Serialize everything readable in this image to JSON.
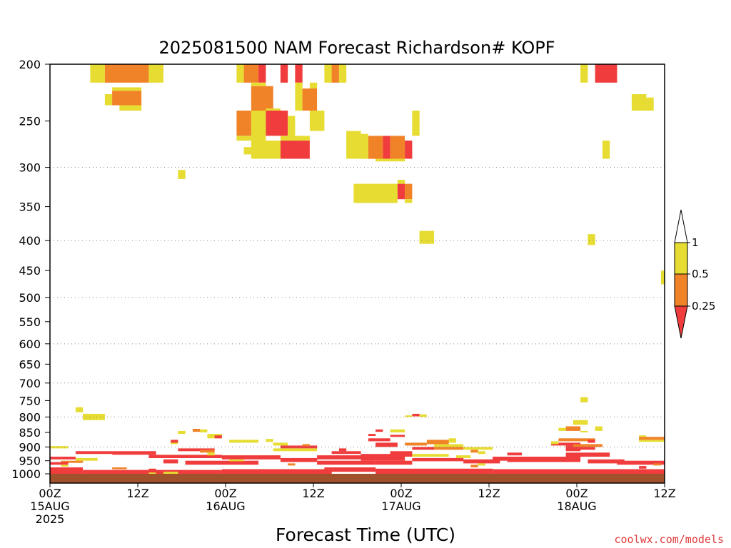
{
  "chart_data": {
    "type": "heatmap",
    "title": "2025081500 NAM Forecast Richardson# KOPF",
    "xlabel": "Forecast Time (UTC)",
    "credit": "coolwx.com/models",
    "y_axis": {
      "scale": "log-pressure",
      "range_hpa": [
        1000,
        200
      ],
      "ticks": [
        "200",
        "250",
        "300",
        "350",
        "400",
        "450",
        "500",
        "550",
        "600",
        "650",
        "700",
        "750",
        "800",
        "850",
        "900",
        "950",
        "1000"
      ],
      "dotted_gridlines_hpa": [
        300,
        400,
        500,
        600,
        700,
        800,
        900
      ]
    },
    "x_axis": {
      "range_hours": [
        0,
        84
      ],
      "ticks": [
        {
          "hour": 0,
          "line1": "00Z",
          "line2": "15AUG",
          "line3": "2025"
        },
        {
          "hour": 12,
          "line1": "12Z",
          "line2": "",
          "line3": ""
        },
        {
          "hour": 24,
          "line1": "00Z",
          "line2": "16AUG",
          "line3": ""
        },
        {
          "hour": 36,
          "line1": "12Z",
          "line2": "",
          "line3": ""
        },
        {
          "hour": 48,
          "line1": "00Z",
          "line2": "17AUG",
          "line3": ""
        },
        {
          "hour": 60,
          "line1": "12Z",
          "line2": "",
          "line3": ""
        },
        {
          "hour": 72,
          "line1": "00Z",
          "line2": "18AUG",
          "line3": ""
        },
        {
          "hour": 84,
          "line1": "12Z",
          "line2": "",
          "line3": ""
        }
      ]
    },
    "colorbar": {
      "levels": [
        "1",
        "0.5",
        "0.25"
      ],
      "bins": [
        {
          "range": "<0.25",
          "color": "#f03c3c"
        },
        {
          "range": "0.25-0.5",
          "color": "#f08228"
        },
        {
          "range": "0.5-1",
          "color": "#e6dc32"
        },
        {
          "range": ">1",
          "color": "#ffffff"
        }
      ]
    },
    "ground_color": "#a0522d",
    "cell_value_codes": {
      "Y": "0.5-1",
      "O": "0.25-0.5",
      "R": "<0.25"
    },
    "cells": [
      [
        "Y",
        5.5,
        7.5,
        200,
        215
      ],
      [
        "O",
        7.5,
        13.5,
        200,
        215
      ],
      [
        "Y",
        13.5,
        15.5,
        200,
        215
      ],
      [
        "Y",
        14.5,
        15.5,
        200,
        208
      ],
      [
        "Y",
        7.5,
        8.5,
        225,
        235
      ],
      [
        "O",
        8.5,
        12.5,
        222,
        235
      ],
      [
        "Y",
        8.5,
        12.5,
        219,
        222
      ],
      [
        "Y",
        9.5,
        12.5,
        235,
        240
      ],
      [
        "Y",
        17.5,
        18.5,
        303,
        314
      ],
      [
        "Y",
        25.5,
        26.5,
        200,
        215
      ],
      [
        "O",
        26.5,
        28.5,
        200,
        215
      ],
      [
        "R",
        28.5,
        29.5,
        200,
        215
      ],
      [
        "Y",
        27.5,
        29.5,
        215,
        218
      ],
      [
        "O",
        27.5,
        30.5,
        218,
        240
      ],
      [
        "Y",
        29.5,
        31.5,
        238,
        245
      ],
      [
        "R",
        31.5,
        32.5,
        200,
        215
      ],
      [
        "R",
        33.5,
        34.5,
        200,
        215
      ],
      [
        "Y",
        37.5,
        38.5,
        200,
        215
      ],
      [
        "O",
        38.5,
        39.5,
        200,
        215
      ],
      [
        "Y",
        39.5,
        40.5,
        200,
        215
      ],
      [
        "Y",
        33.5,
        34.5,
        215,
        240
      ],
      [
        "O",
        34.5,
        36.5,
        220,
        240
      ],
      [
        "Y",
        35.5,
        36.5,
        215,
        220
      ],
      [
        "O",
        25.5,
        27.5,
        240,
        265
      ],
      [
        "Y",
        25.5,
        27.5,
        265,
        270
      ],
      [
        "Y",
        27.5,
        29.5,
        240,
        280
      ],
      [
        "R",
        29.5,
        32.5,
        240,
        265
      ],
      [
        "Y",
        32.5,
        33.5,
        245,
        265
      ],
      [
        "Y",
        35.5,
        37.5,
        240,
        260
      ],
      [
        "Y",
        32.5,
        34.5,
        265,
        270
      ],
      [
        "Y",
        26.5,
        27.5,
        277,
        285
      ],
      [
        "Y",
        27.5,
        31.5,
        270,
        290
      ],
      [
        "R",
        31.5,
        35.5,
        270,
        290
      ],
      [
        "Y",
        31.5,
        35.5,
        265,
        270
      ],
      [
        "Y",
        40.5,
        42.5,
        260,
        290
      ],
      [
        "Y",
        42.5,
        43.5,
        263,
        290
      ],
      [
        "O",
        43.5,
        45.5,
        265,
        290
      ],
      [
        "R",
        45.5,
        46.5,
        265,
        290
      ],
      [
        "O",
        46.5,
        48.5,
        265,
        290
      ],
      [
        "R",
        48.5,
        49.5,
        270,
        290
      ],
      [
        "Y",
        44.5,
        48.5,
        290,
        293
      ],
      [
        "Y",
        49.5,
        50.5,
        240,
        265
      ],
      [
        "Y",
        41.5,
        47.5,
        320,
        345
      ],
      [
        "R",
        47.5,
        48.5,
        320,
        340
      ],
      [
        "O",
        48.5,
        49.5,
        320,
        340
      ],
      [
        "Y",
        47.5,
        48.5,
        315,
        320
      ],
      [
        "Y",
        48.5,
        49.5,
        340,
        345
      ],
      [
        "Y",
        50.5,
        52.5,
        385,
        405
      ],
      [
        "Y",
        72.5,
        73.5,
        200,
        215
      ],
      [
        "R",
        74.5,
        77.5,
        200,
        215
      ],
      [
        "Y",
        79.5,
        81.5,
        225,
        240
      ],
      [
        "Y",
        81.5,
        82.5,
        228,
        240
      ],
      [
        "Y",
        75.5,
        76.5,
        270,
        290
      ],
      [
        "Y",
        73.5,
        74.5,
        390,
        407
      ],
      [
        "Y",
        83.5,
        84.5,
        450,
        475
      ],
      [
        "Y",
        72.5,
        73.5,
        740,
        755
      ],
      [
        "Y",
        3.5,
        4.5,
        770,
        785
      ],
      [
        "Y",
        4.5,
        7.5,
        790,
        810
      ],
      [
        "R",
        49.5,
        50.5,
        790,
        798
      ],
      [
        "Y",
        50.5,
        51.5,
        792,
        800
      ],
      [
        "Y",
        48.5,
        49.5,
        795,
        800
      ],
      [
        "Y",
        71.5,
        73.5,
        810,
        825
      ],
      [
        "O",
        70.5,
        72.5,
        830,
        845
      ],
      [
        "Y",
        69.5,
        70.5,
        835,
        845
      ],
      [
        "Y",
        72.5,
        73.5,
        845,
        850
      ],
      [
        "Y",
        74.5,
        75.5,
        830,
        845
      ],
      [
        "Y",
        17.5,
        18.5,
        845,
        855
      ],
      [
        "O",
        19.5,
        20.5,
        838,
        848
      ],
      [
        "Y",
        20.5,
        21.5,
        840,
        850
      ],
      [
        "Y",
        21.5,
        23.5,
        855,
        870
      ],
      [
        "R",
        22.5,
        23.5,
        860,
        870
      ],
      [
        "R",
        44.5,
        45.5,
        840,
        848
      ],
      [
        "Y",
        46.5,
        48.5,
        840,
        850
      ],
      [
        "R",
        43.5,
        44.5,
        855,
        862
      ],
      [
        "R",
        46.5,
        48.5,
        858,
        865
      ],
      [
        "Y",
        80.5,
        81.5,
        860,
        865
      ],
      [
        "O",
        80.5,
        84.5,
        865,
        875
      ],
      [
        "Y",
        80.5,
        84.5,
        875,
        882
      ],
      [
        "Y",
        0,
        2.5,
        897,
        905
      ],
      [
        "R",
        16.5,
        17.5,
        875,
        885
      ],
      [
        "Y",
        16.5,
        17.5,
        885,
        890
      ],
      [
        "Y",
        24.5,
        28.5,
        875,
        885
      ],
      [
        "Y",
        29.5,
        30.5,
        872,
        882
      ],
      [
        "Y",
        30.5,
        32.5,
        885,
        895
      ],
      [
        "R",
        31.5,
        36.5,
        895,
        905
      ],
      [
        "O",
        34.5,
        35.5,
        890,
        897
      ],
      [
        "Y",
        30.5,
        36.5,
        905,
        915
      ],
      [
        "R",
        43.5,
        46.5,
        870,
        880
      ],
      [
        "R",
        44.5,
        47.5,
        885,
        900
      ],
      [
        "O",
        48.5,
        51.5,
        885,
        895
      ],
      [
        "O",
        51.5,
        54.5,
        875,
        890
      ],
      [
        "Y",
        54.5,
        55.5,
        870,
        885
      ],
      [
        "Y",
        52.5,
        56.5,
        890,
        900
      ],
      [
        "R",
        49.5,
        52.5,
        900,
        910
      ],
      [
        "O",
        52.5,
        56.5,
        900,
        910
      ],
      [
        "Y",
        56.5,
        60.5,
        900,
        910
      ],
      [
        "Y",
        49.5,
        54.5,
        925,
        935
      ],
      [
        "Y",
        55.5,
        57.5,
        930,
        940
      ],
      [
        "R",
        46.5,
        49.5,
        915,
        935
      ],
      [
        "Y",
        47.5,
        48.5,
        935,
        940
      ],
      [
        "R",
        68.5,
        72.5,
        885,
        895
      ],
      [
        "O",
        69.5,
        74.5,
        870,
        880
      ],
      [
        "R",
        70.5,
        72.5,
        895,
        915
      ],
      [
        "Y",
        68.5,
        69.5,
        880,
        890
      ],
      [
        "R",
        73.5,
        74.5,
        875,
        885
      ],
      [
        "O",
        71.5,
        75.5,
        890,
        900
      ],
      [
        "R",
        71.5,
        74.5,
        900,
        910
      ],
      [
        "Y",
        58.5,
        59.5,
        915,
        925
      ],
      [
        "O",
        57.5,
        58.5,
        910,
        920
      ],
      [
        "R",
        62.5,
        64.5,
        920,
        930
      ],
      [
        "R",
        63.5,
        65.5,
        935,
        945
      ],
      [
        "R",
        3.5,
        8.5,
        915,
        925
      ],
      [
        "R",
        0,
        3.5,
        935,
        945
      ],
      [
        "R",
        8.5,
        14.5,
        915,
        928
      ],
      [
        "Y",
        3.5,
        6.5,
        940,
        950
      ],
      [
        "O",
        1.5,
        4.5,
        950,
        958
      ],
      [
        "R",
        0,
        2.5,
        955,
        965
      ],
      [
        "R",
        13.5,
        23.5,
        928,
        940
      ],
      [
        "R",
        17.5,
        22.5,
        905,
        915
      ],
      [
        "O",
        20.5,
        22.5,
        910,
        920
      ],
      [
        "Y",
        21.5,
        22.5,
        920,
        930
      ],
      [
        "R",
        23.5,
        31.5,
        930,
        945
      ],
      [
        "R",
        15.5,
        17.5,
        945,
        960
      ],
      [
        "R",
        18.5,
        28.5,
        950,
        965
      ],
      [
        "Y",
        24.5,
        26.5,
        945,
        952
      ],
      [
        "R",
        31.5,
        36.5,
        940,
        955
      ],
      [
        "R",
        36.5,
        43.5,
        930,
        945
      ],
      [
        "R",
        38.5,
        42.5,
        915,
        925
      ],
      [
        "R",
        39.5,
        40.5,
        905,
        915
      ],
      [
        "R",
        36.5,
        44.5,
        950,
        965
      ],
      [
        "R",
        42.5,
        48.5,
        925,
        950
      ],
      [
        "R",
        44.5,
        49.5,
        950,
        965
      ],
      [
        "R",
        49.5,
        56.5,
        940,
        952
      ],
      [
        "R",
        56.5,
        61.5,
        945,
        960
      ],
      [
        "R",
        60.5,
        64.5,
        935,
        950
      ],
      [
        "R",
        62.5,
        72.5,
        935,
        955
      ],
      [
        "R",
        70.5,
        76.5,
        920,
        935
      ],
      [
        "R",
        73.5,
        78.5,
        945,
        960
      ],
      [
        "R",
        77.5,
        84.5,
        950,
        965
      ],
      [
        "R",
        4.5,
        23.5,
        985,
        1000
      ],
      [
        "R",
        23.5,
        38.5,
        982,
        1000
      ],
      [
        "R",
        37.5,
        44.5,
        975,
        992
      ],
      [
        "R",
        44.5,
        60.5,
        980,
        1000
      ],
      [
        "R",
        60.5,
        84.5,
        982,
        1000
      ],
      [
        "R",
        13.5,
        14.5,
        980,
        995
      ],
      [
        "R",
        0,
        4.5,
        975,
        1000
      ],
      [
        "Y",
        13.5,
        14.5,
        995,
        1000
      ],
      [
        "Y",
        1.5,
        2.5,
        965,
        972
      ],
      [
        "O",
        8.5,
        10.5,
        975,
        982
      ],
      [
        "Y",
        15.5,
        17.5,
        992,
        1000
      ],
      [
        "O",
        32.5,
        33.5,
        960,
        968
      ],
      [
        "O",
        57.5,
        58.5,
        965,
        975
      ],
      [
        "Y",
        58.5,
        59.5,
        960,
        968
      ],
      [
        "R",
        80.5,
        81.5,
        970,
        980
      ],
      [
        "O",
        82.5,
        83.5,
        960,
        968
      ]
    ]
  }
}
